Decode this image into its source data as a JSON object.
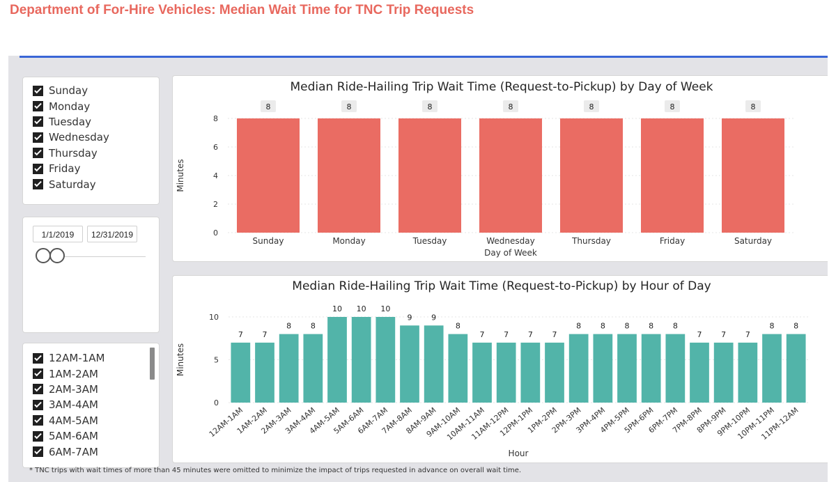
{
  "page_title": "Department of For-Hire Vehicles: Median Wait Time for TNC Trip Requests",
  "colors": {
    "title": "#e8685e",
    "day_bar": "#ea6c63",
    "hour_bar": "#52b4a9",
    "accent_line": "#3a66d6"
  },
  "day_filter": {
    "items": [
      "Sunday",
      "Monday",
      "Tuesday",
      "Wednesday",
      "Thursday",
      "Friday",
      "Saturday"
    ],
    "all_checked": true
  },
  "date_filter": {
    "start": "1/1/2019",
    "end": "12/31/2019"
  },
  "hour_filter": {
    "items": [
      "12AM-1AM",
      "1AM-2AM",
      "2AM-3AM",
      "3AM-4AM",
      "4AM-5AM",
      "5AM-6AM",
      "6AM-7AM"
    ],
    "all_checked": true
  },
  "footnote": "* TNC trips with wait times of more than 45 minutes were omitted to minimize the impact of trips requested in advance on overall wait time.",
  "chart_data": [
    {
      "type": "bar",
      "title": "Median Ride-Hailing Trip Wait Time (Request-to-Pickup) by Day of Week",
      "xlabel": "Day of Week",
      "ylabel": "Minutes",
      "categories": [
        "Sunday",
        "Monday",
        "Tuesday",
        "Wednesday",
        "Thursday",
        "Friday",
        "Saturday"
      ],
      "values": [
        8,
        8,
        8,
        8,
        8,
        8,
        8
      ],
      "yticks": [
        0,
        2,
        4,
        6,
        8
      ],
      "ylim": [
        0,
        8
      ],
      "grid": true,
      "data_labels": true
    },
    {
      "type": "bar",
      "title": "Median Ride-Hailing Trip Wait Time (Request-to-Pickup) by Hour of Day",
      "xlabel": "Hour",
      "ylabel": "Minutes",
      "categories": [
        "12AM-1AM",
        "1AM-2AM",
        "2AM-3AM",
        "3AM-4AM",
        "4AM-5AM",
        "5AM-6AM",
        "6AM-7AM",
        "7AM-8AM",
        "8AM-9AM",
        "9AM-10AM",
        "10AM-11AM",
        "11AM-12PM",
        "12PM-1PM",
        "1PM-2PM",
        "2PM-3PM",
        "3PM-4PM",
        "4PM-5PM",
        "5PM-6PM",
        "6PM-7PM",
        "7PM-8PM",
        "8PM-9PM",
        "9PM-10PM",
        "10PM-11PM",
        "11PM-12AM"
      ],
      "values": [
        7,
        7,
        8,
        8,
        10,
        10,
        10,
        9,
        9,
        8,
        7,
        7,
        7,
        7,
        8,
        8,
        8,
        8,
        8,
        7,
        7,
        7,
        8,
        8
      ],
      "yticks": [
        0,
        5,
        10
      ],
      "ylim": [
        0,
        10
      ],
      "grid": true,
      "data_labels": true
    }
  ]
}
